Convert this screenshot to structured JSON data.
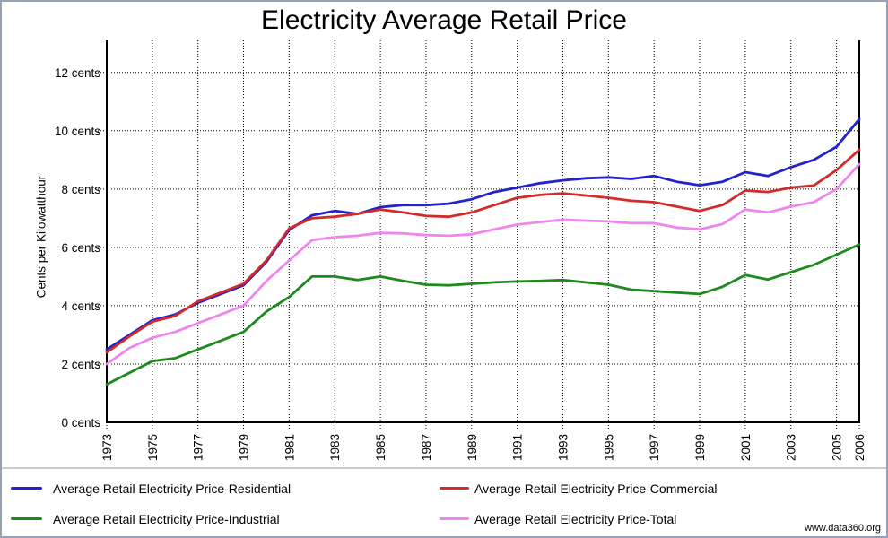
{
  "watermark": "www.data360.org",
  "chart_data": {
    "type": "line",
    "title": "Electricity Average Retail Price",
    "xlabel": "",
    "ylabel": "Cents per Kilowatthour",
    "xlim": [
      1973,
      2006
    ],
    "ylim": [
      0,
      13.1
    ],
    "grid": "dotted-black",
    "legend_position": "bottom-two-columns",
    "y_tick_values": [
      0,
      2,
      4,
      6,
      8,
      10,
      12
    ],
    "y_tick_labels": [
      "0 cents",
      "2 cents",
      "4 cents",
      "6 cents",
      "8 cents",
      "10 cents",
      "12 cents"
    ],
    "x_tick_labels": [
      "1973",
      "1975",
      "1977",
      "1979",
      "1981",
      "1983",
      "1985",
      "1987",
      "1989",
      "1991",
      "1993",
      "1995",
      "1997",
      "1999",
      "2001",
      "2003",
      "2005",
      "2006"
    ],
    "x": [
      1973,
      1974,
      1975,
      1976,
      1977,
      1978,
      1979,
      1980,
      1981,
      1982,
      1983,
      1984,
      1985,
      1986,
      1987,
      1988,
      1989,
      1990,
      1991,
      1992,
      1993,
      1994,
      1995,
      1996,
      1997,
      1998,
      1999,
      2000,
      2001,
      2002,
      2003,
      2004,
      2005,
      2006
    ],
    "series": [
      {
        "name": "Average Retail Electricity Price-Residential",
        "color": "#2323CB",
        "values": [
          2.5,
          3.0,
          3.5,
          3.7,
          4.1,
          4.4,
          4.7,
          5.5,
          6.6,
          7.1,
          7.25,
          7.15,
          7.38,
          7.45,
          7.45,
          7.5,
          7.65,
          7.9,
          8.05,
          8.2,
          8.3,
          8.37,
          8.4,
          8.35,
          8.45,
          8.25,
          8.13,
          8.25,
          8.58,
          8.45,
          8.75,
          9.0,
          9.45,
          10.4
        ]
      },
      {
        "name": "Average Retail Electricity Price-Commercial",
        "color": "#D32B2B",
        "values": [
          2.4,
          2.95,
          3.45,
          3.65,
          4.15,
          4.45,
          4.75,
          5.55,
          6.65,
          7.0,
          7.05,
          7.15,
          7.3,
          7.2,
          7.08,
          7.05,
          7.2,
          7.45,
          7.7,
          7.8,
          7.85,
          7.78,
          7.7,
          7.6,
          7.55,
          7.4,
          7.25,
          7.45,
          7.95,
          7.9,
          8.05,
          8.12,
          8.65,
          9.35
        ]
      },
      {
        "name": "Average Retail Electricity Price-Industrial",
        "color": "#1E8A1E",
        "values": [
          1.3,
          1.7,
          2.1,
          2.2,
          2.5,
          2.8,
          3.1,
          3.8,
          4.3,
          5.0,
          5.0,
          4.88,
          5.0,
          4.85,
          4.72,
          4.7,
          4.75,
          4.8,
          4.83,
          4.85,
          4.88,
          4.8,
          4.72,
          4.55,
          4.5,
          4.45,
          4.4,
          4.65,
          5.05,
          4.9,
          5.15,
          5.4,
          5.75,
          6.1
        ]
      },
      {
        "name": "Average Retail Electricity Price-Total",
        "color": "#EE86EE",
        "values": [
          2.0,
          2.55,
          2.9,
          3.1,
          3.4,
          3.7,
          4.0,
          4.85,
          5.55,
          6.25,
          6.35,
          6.4,
          6.5,
          6.48,
          6.42,
          6.4,
          6.45,
          6.62,
          6.78,
          6.87,
          6.95,
          6.92,
          6.89,
          6.83,
          6.83,
          6.68,
          6.62,
          6.8,
          7.3,
          7.2,
          7.4,
          7.55,
          8.0,
          8.85
        ]
      }
    ]
  }
}
